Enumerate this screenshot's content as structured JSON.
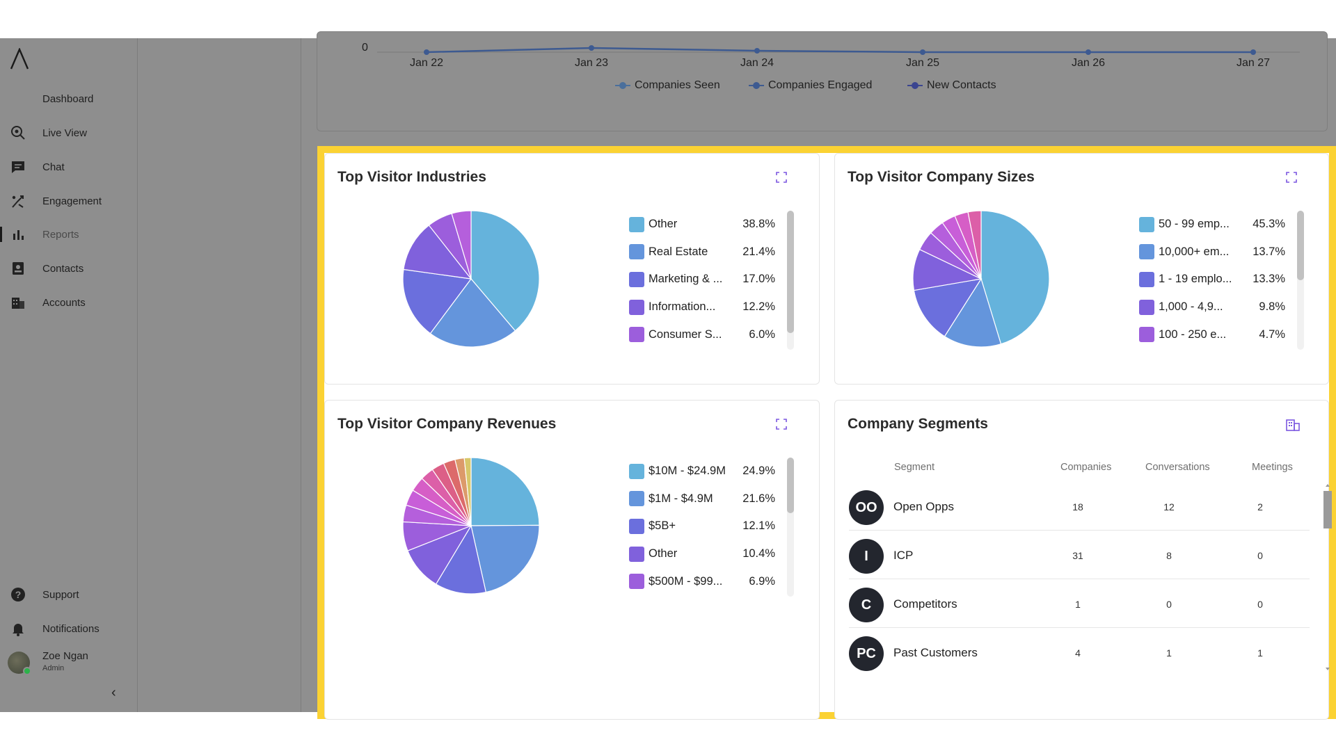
{
  "sidebar": {
    "items": [
      {
        "label": "Dashboard",
        "icon": "dashboard-icon"
      },
      {
        "label": "Live View",
        "icon": "live-view-icon"
      },
      {
        "label": "Chat",
        "icon": "chat-icon"
      },
      {
        "label": "Engagement",
        "icon": "engagement-icon"
      },
      {
        "label": "Reports",
        "icon": "reports-icon",
        "active": true
      },
      {
        "label": "Contacts",
        "icon": "contacts-icon"
      },
      {
        "label": "Accounts",
        "icon": "accounts-icon"
      }
    ],
    "bottom_items": [
      {
        "label": "Support",
        "icon": "help-icon"
      },
      {
        "label": "Notifications",
        "icon": "bell-icon"
      }
    ],
    "user": {
      "name": "Zoe Ngan",
      "role": "Admin"
    },
    "collapse_glyph": "‹"
  },
  "trend_chart": {
    "y_tick": "0",
    "x_ticks": [
      "Jan 22",
      "Jan 23",
      "Jan 24",
      "Jan 25",
      "Jan 26",
      "Jan 27"
    ],
    "legend": [
      {
        "label": "Companies Seen",
        "color": "#4a6f9c"
      },
      {
        "label": "Companies Engaged",
        "color": "#3d5a91"
      },
      {
        "label": "New Contacts",
        "color": "#3b4590"
      }
    ]
  },
  "industries": {
    "title": "Top Visitor Industries",
    "chart_data": {
      "type": "pie",
      "title": "Top Visitor Industries",
      "slices": [
        {
          "label": "Other",
          "value": 38.8,
          "color": "#65b3dc"
        },
        {
          "label": "Real Estate",
          "value": 21.4,
          "color": "#6495dc"
        },
        {
          "label": "Marketing & ...",
          "value": 17.0,
          "color": "#6b6fdd"
        },
        {
          "label": "Information...",
          "value": 12.2,
          "color": "#8061dc"
        },
        {
          "label": "Consumer S...",
          "value": 6.0,
          "color": "#9c5edc"
        },
        {
          "label": "",
          "value": 4.6,
          "color": "#b55fdc"
        }
      ],
      "legend_visible": 5
    },
    "legend_pct": [
      "38.8%",
      "21.4%",
      "17.0%",
      "12.2%",
      "6.0%"
    ]
  },
  "sizes": {
    "title": "Top Visitor Company Sizes",
    "chart_data": {
      "type": "pie",
      "title": "Top Visitor Company Sizes",
      "slices": [
        {
          "label": "50 - 99 emp...",
          "value": 45.3,
          "color": "#65b3dc"
        },
        {
          "label": "10,000+ em...",
          "value": 13.7,
          "color": "#6495dc"
        },
        {
          "label": "1 - 19 emplo...",
          "value": 13.3,
          "color": "#6b6fdd"
        },
        {
          "label": "1,000 - 4,9...",
          "value": 9.8,
          "color": "#8061dc"
        },
        {
          "label": "100 - 250 e...",
          "value": 4.7,
          "color": "#9c5edc"
        },
        {
          "label": "",
          "value": 3.6,
          "color": "#b55fdc"
        },
        {
          "label": "",
          "value": 3.3,
          "color": "#c85ed8"
        },
        {
          "label": "",
          "value": 3.2,
          "color": "#d65ec6"
        },
        {
          "label": "",
          "value": 3.1,
          "color": "#dc5fa8"
        }
      ],
      "legend_visible": 5
    },
    "legend_pct": [
      "45.3%",
      "13.7%",
      "13.3%",
      "9.8%",
      "4.7%"
    ]
  },
  "revenues": {
    "title": "Top Visitor Company Revenues",
    "chart_data": {
      "type": "pie",
      "title": "Top Visitor Company Revenues",
      "slices": [
        {
          "label": "$10M - $24.9M",
          "value": 24.9,
          "color": "#65b3dc"
        },
        {
          "label": "$1M - $4.9M",
          "value": 21.6,
          "color": "#6495dc"
        },
        {
          "label": "$5B+",
          "value": 12.1,
          "color": "#6b6fdd"
        },
        {
          "label": "Other",
          "value": 10.4,
          "color": "#8061dc"
        },
        {
          "label": "$500M - $99...",
          "value": 6.9,
          "color": "#9c5edc"
        },
        {
          "label": "",
          "value": 4.0,
          "color": "#b55fdc"
        },
        {
          "label": "",
          "value": 3.8,
          "color": "#c85ed8"
        },
        {
          "label": "",
          "value": 3.5,
          "color": "#d65ec6"
        },
        {
          "label": "",
          "value": 3.2,
          "color": "#dc5fa8"
        },
        {
          "label": "",
          "value": 3.0,
          "color": "#dc5f87"
        },
        {
          "label": "",
          "value": 2.8,
          "color": "#dc6a6a"
        },
        {
          "label": "",
          "value": 2.2,
          "color": "#dc9a6a"
        },
        {
          "label": "",
          "value": 1.6,
          "color": "#d8c76a"
        }
      ],
      "legend_visible": 5
    },
    "legend_pct": [
      "24.9%",
      "21.6%",
      "12.1%",
      "10.4%",
      "6.9%"
    ]
  },
  "segments": {
    "title": "Company Segments",
    "columns": [
      "Segment",
      "Companies",
      "Conversations",
      "Meetings"
    ],
    "rows": [
      {
        "initials": "OO",
        "name": "Open Opps",
        "companies": "18",
        "conversations": "12",
        "meetings": "2"
      },
      {
        "initials": "I",
        "name": "ICP",
        "companies": "31",
        "conversations": "8",
        "meetings": "0"
      },
      {
        "initials": "C",
        "name": "Competitors",
        "companies": "1",
        "conversations": "0",
        "meetings": "0"
      },
      {
        "initials": "PC",
        "name": "Past Customers",
        "companies": "4",
        "conversations": "1",
        "meetings": "1"
      }
    ]
  },
  "colors": {
    "highlight": "#fbd233",
    "accent": "#7b57e0"
  }
}
